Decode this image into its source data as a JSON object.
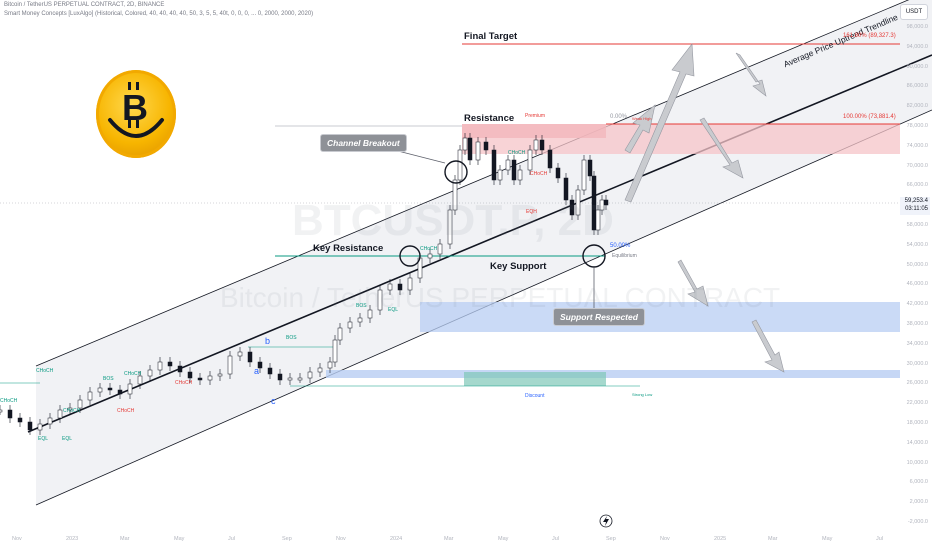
{
  "header": {
    "line1": "Bitcoin / TetherUS PERPETUAL CONTRACT, 2D, BINANCE",
    "line2": "Smart Money Concepts [LuxAlgo] (Historical, Colored, 40, 40, 40, 40, 50, 3, 5, 5, 40t, 0, 0, 0, ... 0, 2000, 2000, 2020)"
  },
  "watermark": {
    "ticker": "BTCUSDT.P, 2D",
    "name": "Bitcoin / TetherUS PERPETUAL CONTRACT"
  },
  "price_scale": {
    "currency": "USDT",
    "current_price": "59,253.4",
    "countdown": "03:11:05",
    "ticks": [
      "98,000.0",
      "94,000.0",
      "90,000.0",
      "86,000.0",
      "82,000.0",
      "78,000.0",
      "74,000.0",
      "70,000.0",
      "66,000.0",
      "62,000.0",
      "58,000.0",
      "54,000.0",
      "50,000.0",
      "46,000.0",
      "42,000.0",
      "38,000.0",
      "34,000.0",
      "30,000.0",
      "26,000.0",
      "22,000.0",
      "18,000.0",
      "14,000.0",
      "10,000.0",
      "6,000.0",
      "2,000.0",
      "-2,000.0"
    ]
  },
  "time_axis": [
    "Nov",
    "2023",
    "Mar",
    "May",
    "Jul",
    "Sep",
    "Nov",
    "2024",
    "Mar",
    "May",
    "Jul",
    "Sep",
    "Nov",
    "2025",
    "Mar",
    "May",
    "Jul"
  ],
  "annotations": {
    "final_target": "Final Target",
    "resistance": "Resistance",
    "key_resistance": "Key Resistance",
    "key_support": "Key Support",
    "trendline": "Average Price Uptrend Trendline",
    "channel_breakout": "Channel Breakout",
    "support_respected": "Support Respected"
  },
  "fib_levels": {
    "level_161": "161.80% (89,327.3)",
    "level_100": "100.00% (73,881.4)",
    "level_0": "0.00%",
    "level_50": "50.00%"
  },
  "smc_labels": {
    "premium": "Premium",
    "weak_high": "Weak High",
    "equilibrium": "Equilibrium",
    "discount": "Discount",
    "strong_low": "Strong Low",
    "bos": "BOS",
    "choch": "CHoCH",
    "eqh": "EQH",
    "eql": "EQL",
    "wave_a": "a",
    "wave_b": "b",
    "wave_c": "c"
  },
  "colors": {
    "bull": "#131722",
    "bear": "#131722",
    "resistance_zone": "#f7c9cc",
    "support_zone": "#b8cdf3",
    "discount_zone": "#7fc8b8",
    "channel_fill": "#e9eaee",
    "red_line": "#e53935",
    "teal_line": "#089981",
    "arrow_fill": "#c9cbcf",
    "logo": "#f7b500"
  },
  "icons": {
    "bitcoin_logo": "bitcoin-smiley-icon",
    "lightning": "lightning-icon"
  }
}
